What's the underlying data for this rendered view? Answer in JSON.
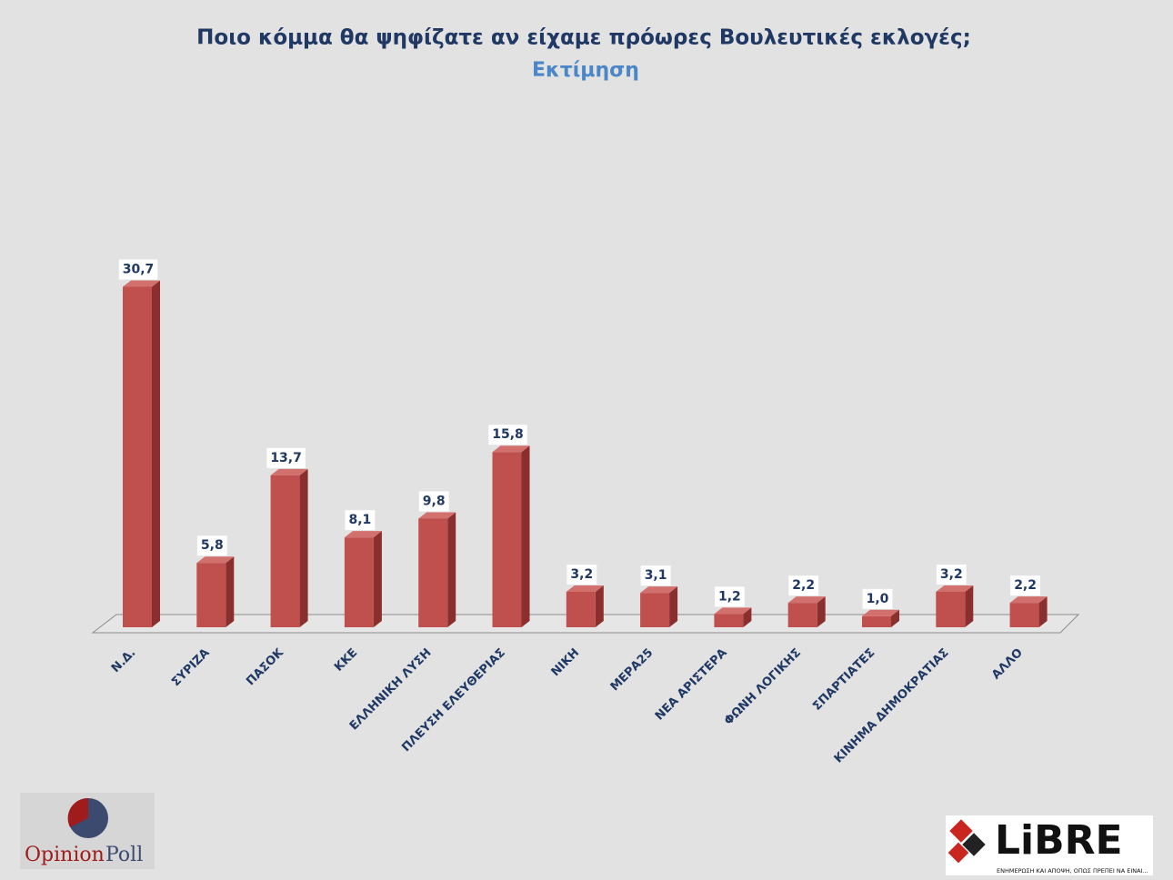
{
  "chart_data": {
    "type": "bar3d",
    "title": "Ποιο κόμμα θα ψηφίζατε αν είχαμε πρόωρες Βουλευτικές εκλογές;",
    "subtitle": "Εκτίμηση",
    "categories": [
      "Ν.Δ.",
      "ΣΥΡΙΖΑ",
      "ΠΑΣΟΚ",
      "ΚΚΕ",
      "ΕΛΛΗΝΙΚΗ ΛΥΣΗ",
      "ΠΛΕΥΣΗ ΕΛΕΥΘΕΡΙΑΣ",
      "ΝΙΚΗ",
      "ΜΕΡΑ25",
      "ΝΕΑ ΑΡΙΣΤΕΡΑ",
      "ΦΩΝΗ ΛΟΓΙΚΗΣ",
      "ΣΠΑΡΤΙΑΤΕΣ",
      "ΚΙΝΗΜΑ ΔΗΜΟΚΡΑΤΙΑΣ",
      "ΑΛΛΟ"
    ],
    "values": [
      30.7,
      5.8,
      13.7,
      8.1,
      9.8,
      15.8,
      3.2,
      3.1,
      1.2,
      2.2,
      1.0,
      3.2,
      2.2
    ],
    "value_labels": [
      "30,7",
      "5,8",
      "13,7",
      "8,1",
      "9,8",
      "15,8",
      "3,2",
      "3,1",
      "1,2",
      "2,2",
      "1,0",
      "3,2",
      "2,2"
    ],
    "color": "#c0504d"
  },
  "logos": {
    "opinion": "Opinion",
    "poll": "Poll",
    "libre": "LiBRE",
    "libre_tagline": "ΕΝΗΜΕΡΩΣΗ ΚΑΙ ΑΠΟΨΗ, ΟΠΩΣ ΠΡΕΠΕΙ ΝΑ ΕΙΝΑΙ..."
  }
}
